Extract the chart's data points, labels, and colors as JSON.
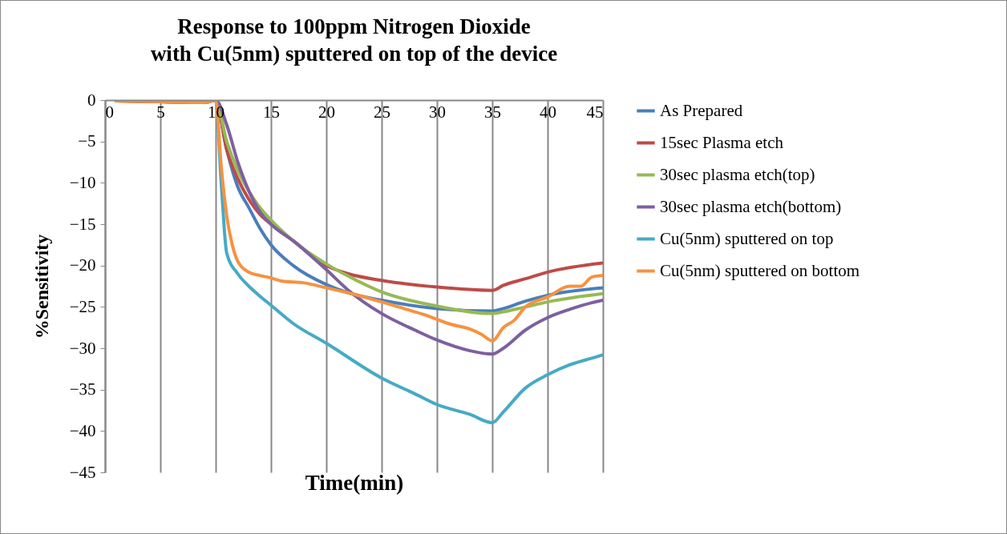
{
  "chart_data": {
    "type": "line",
    "title": "Response to 100ppm Nitrogen Dioxide\nwith Cu(5nm) sputtered on top of the device",
    "xlabel": "Time(min)",
    "ylabel": "%Sensitivity",
    "xlim": [
      0,
      45
    ],
    "xticks": [
      0,
      5,
      10,
      15,
      20,
      25,
      30,
      35,
      40,
      45
    ],
    "ylim": [
      -45,
      0
    ],
    "yticks": [
      -45,
      -40,
      -35,
      -30,
      -25,
      -20,
      -15,
      -10,
      -5,
      0
    ],
    "grid": "x",
    "legend": "right",
    "marker": "none",
    "line_style": "solid",
    "series": [
      {
        "name": "As Prepared",
        "color": "#4a7ebb",
        "x": [
          9,
          10,
          11,
          12,
          13,
          14,
          15,
          17,
          20,
          22,
          25,
          30,
          35,
          36,
          38,
          40,
          45
        ],
        "values": [
          -0.3,
          0,
          -6,
          -10.5,
          -13,
          -15.5,
          -17.5,
          -20,
          -22.3,
          -23.3,
          -24.2,
          -25.2,
          -25.5,
          -25.2,
          -24.3,
          -23.6,
          -22.7
        ]
      },
      {
        "name": "15sec Plasma etch",
        "color": "#be4b48",
        "x": [
          1,
          5,
          9,
          10,
          11,
          12,
          13,
          14,
          15,
          17,
          20,
          22,
          25,
          30,
          35,
          36,
          38,
          40,
          45
        ],
        "values": [
          -0.1,
          -0.2,
          -0.3,
          0,
          -6,
          -9.5,
          -12,
          -13.8,
          -15,
          -17,
          -20,
          -21,
          -21.8,
          -22.6,
          -23,
          -22.4,
          -21.6,
          -20.8,
          -19.7
        ]
      },
      {
        "name": "30sec plasma etch(top)",
        "color": "#98b954",
        "x": [
          1,
          5,
          9,
          10,
          11,
          12,
          13,
          14,
          15,
          17,
          20,
          22,
          25,
          30,
          35,
          36,
          38,
          40,
          45
        ],
        "values": [
          -0.1,
          -0.2,
          -0.3,
          0,
          -5,
          -8.5,
          -11,
          -13,
          -14.5,
          -17,
          -19.8,
          -21.3,
          -23.2,
          -24.9,
          -25.8,
          -25.6,
          -25,
          -24.4,
          -23.4
        ]
      },
      {
        "name": "30sec plasma etch(bottom)",
        "color": "#7d60a0",
        "x": [
          1,
          5,
          9,
          10,
          11,
          12,
          13,
          14,
          15,
          17,
          20,
          22,
          25,
          28,
          30,
          33,
          35,
          36,
          38,
          40,
          42,
          44,
          45
        ],
        "values": [
          -0.1,
          -0.2,
          -0.3,
          0,
          -3,
          -7.5,
          -11,
          -13.5,
          -15,
          -17,
          -20.5,
          -23,
          -25.8,
          -27.8,
          -29,
          -30.3,
          -30.7,
          -30,
          -27.8,
          -26.3,
          -25.3,
          -24.5,
          -24.2
        ]
      },
      {
        "name": "Cu(5nm) sputtered on top",
        "color": "#46aac5",
        "x": [
          9,
          10,
          10.5,
          11,
          12,
          13,
          14,
          15,
          17,
          20,
          25,
          28,
          30,
          33,
          35,
          36,
          38,
          40,
          42,
          44,
          45
        ],
        "values": [
          -0.3,
          0,
          -10,
          -18.5,
          -21,
          -22.5,
          -23.7,
          -24.8,
          -27,
          -29.4,
          -33.6,
          -35.5,
          -36.8,
          -38,
          -39,
          -37.7,
          -34.8,
          -33.2,
          -32,
          -31.2,
          -30.8
        ]
      },
      {
        "name": "Cu(5nm) sputtered on bottom",
        "color": "#f69240",
        "x": [
          1,
          5,
          9,
          10,
          10.5,
          11,
          11.5,
          12,
          13,
          14,
          15,
          16,
          18,
          20,
          22,
          25,
          27,
          29,
          30,
          31,
          33,
          34,
          35,
          36,
          37,
          38,
          40,
          42,
          43,
          44,
          45
        ],
        "values": [
          -0.1,
          -0.2,
          -0.3,
          0,
          -8,
          -14,
          -17.5,
          -19.5,
          -20.8,
          -21.2,
          -21.5,
          -21.9,
          -22.1,
          -22.7,
          -23.3,
          -24.4,
          -25.2,
          -26,
          -26.5,
          -27,
          -27.7,
          -28.3,
          -29.1,
          -27.5,
          -26.6,
          -25,
          -23.8,
          -22.5,
          -22.5,
          -21.4,
          -21.2
        ]
      }
    ]
  }
}
